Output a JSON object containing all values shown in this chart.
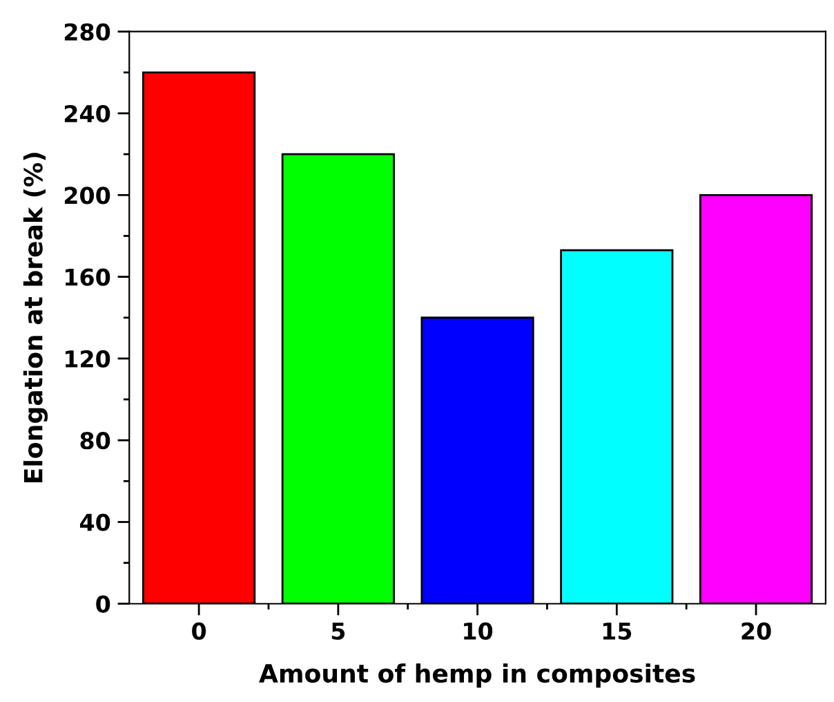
{
  "chart_data": {
    "type": "bar",
    "xlabel": "Amount of hemp in composites",
    "ylabel": "Elongation at break (%)",
    "categories": [
      "0",
      "5",
      "10",
      "15",
      "20"
    ],
    "values": [
      260,
      220,
      140,
      173,
      200
    ],
    "colors": [
      "#ff0000",
      "#00ff00",
      "#0000ff",
      "#00ffff",
      "#ff00ff"
    ],
    "ylim": [
      0,
      280
    ],
    "yticks": [
      0,
      40,
      80,
      120,
      160,
      200,
      240,
      280
    ],
    "grid": false
  }
}
